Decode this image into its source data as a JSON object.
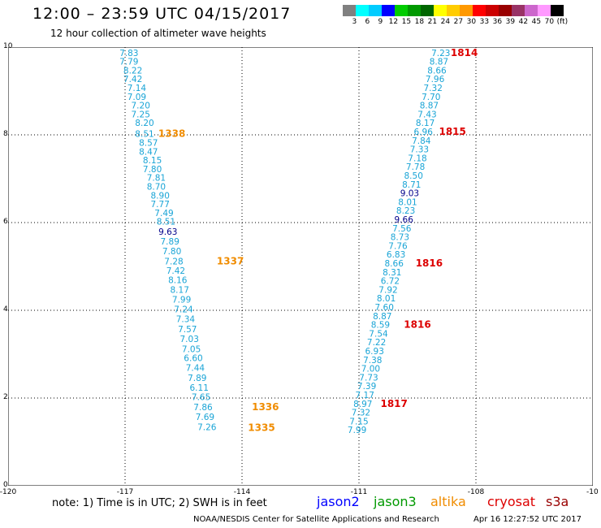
{
  "title": "12:00 – 23:59 UTC 04/15/2017",
  "subtitle": "12 hour collection of altimeter wave heights",
  "colorbar": {
    "colors": [
      "#808080",
      "#00ffff",
      "#00ccff",
      "#0000ff",
      "#00cc00",
      "#009900",
      "#006600",
      "#ffff00",
      "#ffcc00",
      "#ff9900",
      "#ff0000",
      "#cc0000",
      "#990000",
      "#993366",
      "#cc66cc",
      "#ff99ff",
      "#000000"
    ],
    "labels": [
      "3",
      "6",
      "9",
      "12",
      "15",
      "18",
      "21",
      "24",
      "27",
      "30",
      "33",
      "36",
      "39",
      "42",
      "45",
      "70",
      "(ft)"
    ]
  },
  "map": {
    "x_ticks": [
      "-120",
      "-117",
      "-114",
      "-111",
      "-108",
      "-10"
    ],
    "y_ticks": [
      "0",
      "2",
      "4",
      "6",
      "8",
      "10"
    ],
    "lon_range": [
      -120,
      -105
    ],
    "lat_range": [
      0,
      10
    ],
    "tracks": [
      {
        "color": "#19a4d6",
        "points": [
          {
            "lon": -116.9,
            "lat": 9.8,
            "v": "7.83"
          },
          {
            "lon": -116.9,
            "lat": 9.6,
            "v": "7.79"
          },
          {
            "lon": -116.8,
            "lat": 9.4,
            "v": "8.22"
          },
          {
            "lon": -116.8,
            "lat": 9.2,
            "v": "7.42"
          },
          {
            "lon": -116.7,
            "lat": 9.0,
            "v": "7.14"
          },
          {
            "lon": -116.7,
            "lat": 8.8,
            "v": "7.09"
          },
          {
            "lon": -116.6,
            "lat": 8.6,
            "v": "7.20"
          },
          {
            "lon": -116.6,
            "lat": 8.4,
            "v": "7.25"
          },
          {
            "lon": -116.5,
            "lat": 8.2,
            "v": "8.20"
          },
          {
            "lon": -116.5,
            "lat": 7.95,
            "v": "8.51"
          },
          {
            "lon": -116.4,
            "lat": 7.75,
            "v": "8.57"
          },
          {
            "lon": -116.4,
            "lat": 7.55,
            "v": "8.47"
          },
          {
            "lon": -116.3,
            "lat": 7.35,
            "v": "8.15"
          },
          {
            "lon": -116.3,
            "lat": 7.15,
            "v": "7.80"
          },
          {
            "lon": -116.2,
            "lat": 6.95,
            "v": "7.81"
          },
          {
            "lon": -116.2,
            "lat": 6.75,
            "v": "8.70"
          },
          {
            "lon": -116.1,
            "lat": 6.55,
            "v": "8.90"
          },
          {
            "lon": -116.1,
            "lat": 6.35,
            "v": "7.77"
          },
          {
            "lon": -116.0,
            "lat": 6.15,
            "v": "7.49"
          },
          {
            "lon": -115.95,
            "lat": 5.95,
            "v": "8.51"
          },
          {
            "lon": -115.9,
            "lat": 5.72,
            "v": "9.63"
          },
          {
            "lon": -115.85,
            "lat": 5.5,
            "v": "7.89"
          },
          {
            "lon": -115.8,
            "lat": 5.28,
            "v": "7.80"
          },
          {
            "lon": -115.75,
            "lat": 5.05,
            "v": "7.28"
          },
          {
            "lon": -115.7,
            "lat": 4.83,
            "v": "7.42"
          },
          {
            "lon": -115.65,
            "lat": 4.62,
            "v": "8.16"
          },
          {
            "lon": -115.6,
            "lat": 4.4,
            "v": "8.17"
          },
          {
            "lon": -115.55,
            "lat": 4.18,
            "v": "7.99"
          },
          {
            "lon": -115.5,
            "lat": 3.95,
            "v": "7.24"
          },
          {
            "lon": -115.45,
            "lat": 3.73,
            "v": "7.34"
          },
          {
            "lon": -115.4,
            "lat": 3.5,
            "v": "7.57"
          },
          {
            "lon": -115.35,
            "lat": 3.28,
            "v": "7.03"
          },
          {
            "lon": -115.3,
            "lat": 3.05,
            "v": "7.05"
          },
          {
            "lon": -115.25,
            "lat": 2.84,
            "v": "6.60"
          },
          {
            "lon": -115.2,
            "lat": 2.62,
            "v": "7.44"
          },
          {
            "lon": -115.15,
            "lat": 2.39,
            "v": "7.89"
          },
          {
            "lon": -115.1,
            "lat": 2.17,
            "v": "6.11"
          },
          {
            "lon": -115.05,
            "lat": 1.95,
            "v": "7.65"
          },
          {
            "lon": -115.0,
            "lat": 1.72,
            "v": "7.86"
          },
          {
            "lon": -114.95,
            "lat": 1.5,
            "v": "7.69"
          },
          {
            "lon": -114.9,
            "lat": 1.27,
            "v": "7.26"
          }
        ]
      },
      {
        "color": "#19a4d6",
        "points": [
          {
            "lon": -108.9,
            "lat": 9.8,
            "v": "7.23"
          },
          {
            "lon": -108.95,
            "lat": 9.6,
            "v": "8.87"
          },
          {
            "lon": -109.0,
            "lat": 9.4,
            "v": "8.66"
          },
          {
            "lon": -109.05,
            "lat": 9.2,
            "v": "7.96"
          },
          {
            "lon": -109.1,
            "lat": 9.0,
            "v": "7.32"
          },
          {
            "lon": -109.15,
            "lat": 8.8,
            "v": "7.70"
          },
          {
            "lon": -109.2,
            "lat": 8.6,
            "v": "8.87"
          },
          {
            "lon": -109.25,
            "lat": 8.4,
            "v": "7.43"
          },
          {
            "lon": -109.3,
            "lat": 8.2,
            "v": "8.17"
          },
          {
            "lon": -109.35,
            "lat": 8.0,
            "v": "6.96"
          },
          {
            "lon": -109.4,
            "lat": 7.8,
            "v": "7.84"
          },
          {
            "lon": -109.45,
            "lat": 7.6,
            "v": "7.33"
          },
          {
            "lon": -109.5,
            "lat": 7.4,
            "v": "7.18"
          },
          {
            "lon": -109.55,
            "lat": 7.2,
            "v": "7.78"
          },
          {
            "lon": -109.6,
            "lat": 7.0,
            "v": "8.50"
          },
          {
            "lon": -109.65,
            "lat": 6.8,
            "v": "8.71"
          },
          {
            "lon": -109.7,
            "lat": 6.6,
            "v": "9.03"
          },
          {
            "lon": -109.75,
            "lat": 6.4,
            "v": "8.01"
          },
          {
            "lon": -109.8,
            "lat": 6.2,
            "v": "8.23"
          },
          {
            "lon": -109.85,
            "lat": 6.0,
            "v": "9.66"
          },
          {
            "lon": -109.9,
            "lat": 5.8,
            "v": "7.56"
          },
          {
            "lon": -109.95,
            "lat": 5.6,
            "v": "8.73"
          },
          {
            "lon": -110.0,
            "lat": 5.4,
            "v": "7.76"
          },
          {
            "lon": -110.05,
            "lat": 5.2,
            "v": "6.83"
          },
          {
            "lon": -110.1,
            "lat": 5.0,
            "v": "8.66"
          },
          {
            "lon": -110.15,
            "lat": 4.8,
            "v": "8.31"
          },
          {
            "lon": -110.2,
            "lat": 4.6,
            "v": "6.72"
          },
          {
            "lon": -110.25,
            "lat": 4.4,
            "v": "7.92"
          },
          {
            "lon": -110.3,
            "lat": 4.2,
            "v": "8.01"
          },
          {
            "lon": -110.35,
            "lat": 4.0,
            "v": "7.60"
          },
          {
            "lon": -110.4,
            "lat": 3.8,
            "v": "8.87"
          },
          {
            "lon": -110.45,
            "lat": 3.6,
            "v": "8.59"
          },
          {
            "lon": -110.5,
            "lat": 3.4,
            "v": "7.54"
          },
          {
            "lon": -110.55,
            "lat": 3.2,
            "v": "7.22"
          },
          {
            "lon": -110.6,
            "lat": 3.0,
            "v": "6.93"
          },
          {
            "lon": -110.65,
            "lat": 2.8,
            "v": "7.38"
          },
          {
            "lon": -110.7,
            "lat": 2.6,
            "v": "7.00"
          },
          {
            "lon": -110.75,
            "lat": 2.4,
            "v": "7.73"
          },
          {
            "lon": -110.8,
            "lat": 2.2,
            "v": "7.39"
          },
          {
            "lon": -110.85,
            "lat": 2.0,
            "v": "7.17"
          },
          {
            "lon": -110.9,
            "lat": 1.8,
            "v": "8.97"
          },
          {
            "lon": -110.95,
            "lat": 1.6,
            "v": "7.32"
          },
          {
            "lon": -111.0,
            "lat": 1.4,
            "v": "7.15"
          },
          {
            "lon": -111.05,
            "lat": 1.2,
            "v": "7.99"
          }
        ]
      }
    ],
    "time_labels": [
      {
        "lon": -115.8,
        "lat": 7.95,
        "t": "1338",
        "color": "#f08c00"
      },
      {
        "lon": -114.3,
        "lat": 5.05,
        "t": "1337",
        "color": "#f08c00"
      },
      {
        "lon": -113.4,
        "lat": 1.72,
        "t": "1336",
        "color": "#f08c00"
      },
      {
        "lon": -113.5,
        "lat": 1.25,
        "t": "1335",
        "color": "#f08c00"
      },
      {
        "lon": -108.3,
        "lat": 9.8,
        "t": "1814",
        "color": "#dd0000"
      },
      {
        "lon": -108.6,
        "lat": 8.0,
        "t": "1815",
        "color": "#dd0000"
      },
      {
        "lon": -109.2,
        "lat": 5.0,
        "t": "1816",
        "color": "#dd0000"
      },
      {
        "lon": -109.5,
        "lat": 3.6,
        "t": "1816",
        "color": "#dd0000"
      },
      {
        "lon": -110.1,
        "lat": 1.8,
        "t": "1817",
        "color": "#dd0000"
      }
    ]
  },
  "footer": {
    "note": "note:  1) Time is in UTC;  2) SWH is in feet",
    "satellites": [
      {
        "name": "jason2",
        "color": "#0000ff"
      },
      {
        "name": "jason3",
        "color": "#009900"
      },
      {
        "name": "altika",
        "color": "#f08c00"
      },
      {
        "name": "cryosat",
        "color": "#dd0000"
      },
      {
        "name": "s3a",
        "color": "#990000"
      }
    ],
    "credit": "NOAA/NESDIS Center for Satellite Applications and Research",
    "created": "Apr 16 12:27:52 UTC 2017"
  }
}
